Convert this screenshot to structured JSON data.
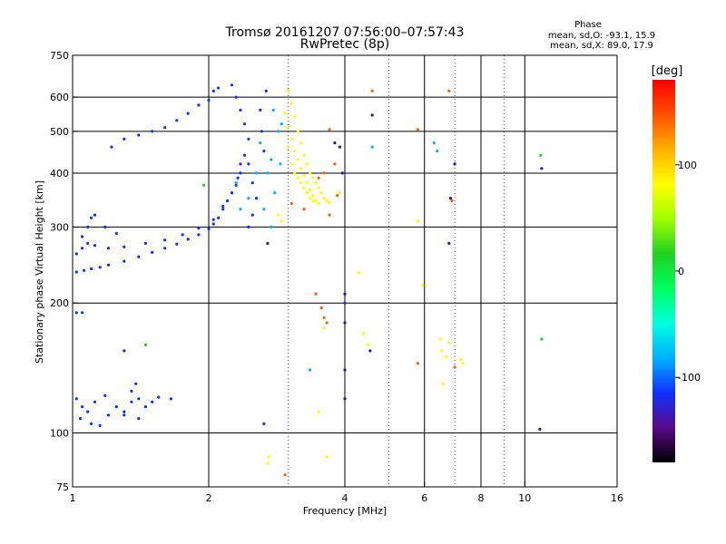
{
  "header": {
    "title_line1": "Tromsø 20161207 07:56:00–07:57:43",
    "title_line2": "RwPretec (8p)"
  },
  "phase_info": {
    "heading": "Phase",
    "line_o": "mean, sd,O: -93.1, 15.9",
    "line_x": "mean, sd,X: 89.0, 17.9"
  },
  "chart_data": {
    "type": "scatter",
    "title": "Tromsø 20161207 07:56:00–07:57:43",
    "subtitle": "RwPretec (8p)",
    "xlabel": "Frequency [MHz]",
    "ylabel": "Stationary phase Virtual Height [km]",
    "x_scale": "log",
    "y_scale": "log",
    "xlim": [
      1,
      16
    ],
    "ylim": [
      75,
      750
    ],
    "x_ticks": [
      1,
      2,
      4,
      6,
      8,
      10,
      16
    ],
    "x_tick_labels": [
      "1",
      "2",
      "4",
      "6",
      "8",
      "10",
      "16"
    ],
    "y_ticks": [
      75,
      100,
      200,
      300,
      400,
      500,
      600,
      750
    ],
    "y_tick_labels": [
      "75",
      "100",
      "200",
      "300",
      "400",
      "500",
      "600",
      "750"
    ],
    "x_gridlines": [
      2,
      4,
      6,
      8,
      10
    ],
    "x_gridlines_dashed": [
      3,
      5,
      7,
      9
    ],
    "y_gridlines": [
      100,
      200,
      300,
      400,
      500,
      600
    ],
    "grid": true,
    "colorbar": {
      "label": "[deg]",
      "range": [
        -180,
        180
      ],
      "ticks": [
        -100,
        0,
        100
      ],
      "tick_labels": [
        "-100",
        "0",
        "100"
      ],
      "colors": [
        "#000000",
        "#5a0a8a",
        "#1030ff",
        "#00b0ff",
        "#00ffe0",
        "#00ff60",
        "#20d020",
        "#a0ff00",
        "#ffff00",
        "#ffb000",
        "#ff5000",
        "#ff0000"
      ]
    },
    "series": [
      {
        "values": [
          [
            1.02,
            236
          ],
          [
            1.06,
            238
          ],
          [
            1.1,
            240
          ],
          [
            1.15,
            242
          ],
          [
            1.2,
            245
          ],
          [
            1.3,
            250
          ],
          [
            1.4,
            256
          ],
          [
            1.5,
            262
          ],
          [
            1.6,
            268
          ],
          [
            1.7,
            274
          ],
          [
            1.8,
            281
          ],
          [
            1.9,
            288
          ],
          [
            2.0,
            297
          ],
          [
            2.05,
            305
          ],
          [
            2.1,
            315
          ],
          [
            2.15,
            330
          ],
          [
            2.2,
            345
          ],
          [
            2.25,
            360
          ],
          [
            2.3,
            375
          ],
          [
            2.32,
            390
          ],
          [
            2.35,
            400
          ],
          [
            1.02,
            260
          ],
          [
            1.05,
            268
          ],
          [
            1.08,
            275
          ],
          [
            1.12,
            272
          ],
          [
            1.2,
            268
          ],
          [
            1.3,
            270
          ],
          [
            1.45,
            275
          ],
          [
            1.6,
            280
          ],
          [
            1.75,
            288
          ],
          [
            1.9,
            298
          ],
          [
            2.05,
            312
          ],
          [
            2.15,
            335
          ],
          [
            2.25,
            360
          ],
          [
            1.05,
            285
          ],
          [
            1.08,
            300
          ],
          [
            1.1,
            315
          ],
          [
            1.12,
            320
          ],
          [
            1.18,
            300
          ],
          [
            1.25,
            290
          ],
          [
            1.22,
            460
          ],
          [
            1.3,
            480
          ],
          [
            1.4,
            490
          ],
          [
            1.5,
            500
          ],
          [
            1.6,
            510
          ],
          [
            1.7,
            530
          ],
          [
            1.8,
            550
          ],
          [
            1.9,
            575
          ],
          [
            2.0,
            590
          ],
          [
            2.05,
            620
          ],
          [
            2.1,
            630
          ],
          [
            2.25,
            640
          ],
          [
            2.3,
            600
          ],
          [
            2.35,
            560
          ],
          [
            2.4,
            520
          ],
          [
            2.45,
            480
          ],
          [
            2.4,
            440
          ],
          [
            2.35,
            420
          ],
          [
            2.45,
            420
          ],
          [
            2.5,
            380
          ],
          [
            2.55,
            350
          ],
          [
            2.5,
            320
          ],
          [
            2.45,
            300
          ],
          [
            2.6,
            560
          ],
          [
            2.62,
            500
          ],
          [
            2.65,
            450
          ],
          [
            2.68,
            620
          ],
          [
            1.02,
            120
          ],
          [
            1.05,
            115
          ],
          [
            1.08,
            112
          ],
          [
            1.12,
            118
          ],
          [
            1.18,
            122
          ],
          [
            1.25,
            115
          ],
          [
            1.3,
            112
          ],
          [
            1.35,
            118
          ],
          [
            1.4,
            120
          ],
          [
            1.45,
            115
          ],
          [
            1.5,
            118
          ],
          [
            1.55,
            121
          ],
          [
            1.65,
            120
          ],
          [
            1.04,
            108
          ],
          [
            1.1,
            105
          ],
          [
            1.15,
            104
          ],
          [
            1.2,
            110
          ],
          [
            1.3,
            110
          ],
          [
            1.4,
            108
          ],
          [
            1.35,
            125
          ],
          [
            1.38,
            130
          ],
          [
            1.02,
            190
          ],
          [
            1.05,
            190
          ],
          [
            1.3,
            155
          ],
          [
            2.65,
            105
          ],
          [
            4.0,
            200
          ]
        ],
        "color": "#1030ff"
      },
      {
        "values": [
          [
            2.3,
            380
          ],
          [
            2.35,
            330
          ],
          [
            2.45,
            350
          ],
          [
            2.55,
            400
          ],
          [
            2.6,
            470
          ],
          [
            2.65,
            330
          ],
          [
            2.7,
            400
          ],
          [
            2.75,
            430
          ],
          [
            2.8,
            360
          ],
          [
            2.85,
            500
          ],
          [
            2.78,
            560
          ],
          [
            2.9,
            520
          ],
          [
            2.88,
            420
          ],
          [
            2.75,
            300
          ],
          [
            4.6,
            460
          ],
          [
            6.3,
            470
          ],
          [
            6.4,
            450
          ],
          [
            3.35,
            140
          ]
        ],
        "color": "#00b0ff"
      },
      {
        "values": [
          [
            3.0,
            620
          ],
          [
            3.05,
            580
          ],
          [
            3.1,
            540
          ],
          [
            3.15,
            500
          ],
          [
            3.2,
            470
          ],
          [
            3.25,
            440
          ],
          [
            3.3,
            420
          ],
          [
            3.35,
            400
          ],
          [
            3.4,
            390
          ],
          [
            3.45,
            380
          ],
          [
            3.5,
            370
          ],
          [
            3.55,
            360
          ],
          [
            3.6,
            350
          ],
          [
            3.65,
            345
          ],
          [
            3.7,
            342
          ],
          [
            3.1,
            450
          ],
          [
            3.15,
            430
          ],
          [
            3.2,
            410
          ],
          [
            3.25,
            395
          ],
          [
            3.3,
            380
          ],
          [
            3.35,
            365
          ],
          [
            3.4,
            355
          ],
          [
            3.45,
            345
          ],
          [
            3.5,
            340
          ],
          [
            3.05,
            480
          ],
          [
            3.0,
            510
          ],
          [
            2.95,
            550
          ],
          [
            3.2,
            380
          ],
          [
            3.25,
            370
          ],
          [
            3.3,
            360
          ],
          [
            3.35,
            350
          ],
          [
            3.4,
            345
          ],
          [
            3.05,
            420
          ],
          [
            3.1,
            400
          ],
          [
            3.15,
            390
          ],
          [
            3.0,
            460
          ],
          [
            2.85,
            320
          ],
          [
            2.9,
            310
          ],
          [
            2.7,
            85
          ],
          [
            2.72,
            88
          ],
          [
            3.9,
            360
          ],
          [
            4.4,
            170
          ],
          [
            4.5,
            160
          ],
          [
            3.6,
            175
          ],
          [
            5.8,
            310
          ],
          [
            5.95,
            220
          ],
          [
            6.5,
            165
          ],
          [
            6.55,
            155
          ],
          [
            6.7,
            150
          ],
          [
            6.8,
            162
          ],
          [
            7.3,
            145
          ],
          [
            7.2,
            148
          ],
          [
            3.5,
            112
          ],
          [
            3.65,
            88
          ],
          [
            6.6,
            130
          ],
          [
            4.3,
            235
          ]
        ],
        "color": "#ffff00"
      },
      {
        "values": [
          [
            3.05,
            340
          ],
          [
            3.25,
            330
          ],
          [
            3.5,
            390
          ],
          [
            3.6,
            400
          ],
          [
            3.8,
            420
          ],
          [
            3.7,
            320
          ],
          [
            4.6,
            620
          ],
          [
            6.8,
            620
          ],
          [
            6.9,
            345
          ],
          [
            5.8,
            505
          ],
          [
            5.8,
            145
          ],
          [
            3.45,
            210
          ],
          [
            3.55,
            195
          ],
          [
            3.6,
            185
          ],
          [
            3.65,
            180
          ],
          [
            2.95,
            80
          ],
          [
            7.0,
            142
          ],
          [
            3.85,
            355
          ],
          [
            3.7,
            505
          ]
        ],
        "color": "#ff6000"
      },
      {
        "values": [
          [
            3.9,
            460
          ],
          [
            3.95,
            400
          ],
          [
            3.8,
            470
          ],
          [
            4.6,
            545
          ],
          [
            4.55,
            155
          ],
          [
            4.0,
            120
          ],
          [
            4.0,
            140
          ],
          [
            4.0,
            180
          ],
          [
            4.0,
            210
          ],
          [
            7.0,
            420
          ],
          [
            6.8,
            275
          ],
          [
            6.85,
            350
          ],
          [
            10.8,
            102
          ],
          [
            10.9,
            410
          ],
          [
            2.7,
            275
          ]
        ],
        "color": "#3010a0"
      },
      {
        "values": [
          [
            10.9,
            165
          ],
          [
            10.85,
            440
          ],
          [
            1.95,
            375
          ],
          [
            1.45,
            160
          ]
        ],
        "color": "#20d020"
      }
    ]
  }
}
